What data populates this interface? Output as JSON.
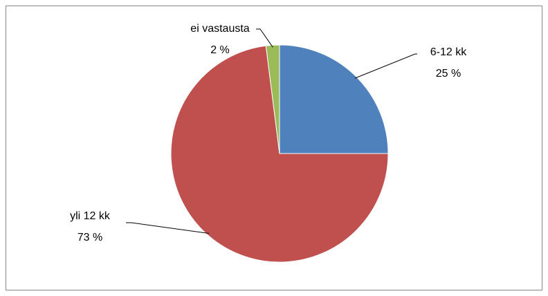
{
  "chart_data": {
    "type": "pie",
    "categories": [
      "6-12 kk",
      "yli 12 kk",
      "ei vastausta"
    ],
    "values": [
      25,
      73,
      2
    ],
    "value_labels": [
      "25 %",
      "73 %",
      "2 %"
    ],
    "colors": [
      "#4f81bd",
      "#c0504d",
      "#9bbb59"
    ]
  }
}
